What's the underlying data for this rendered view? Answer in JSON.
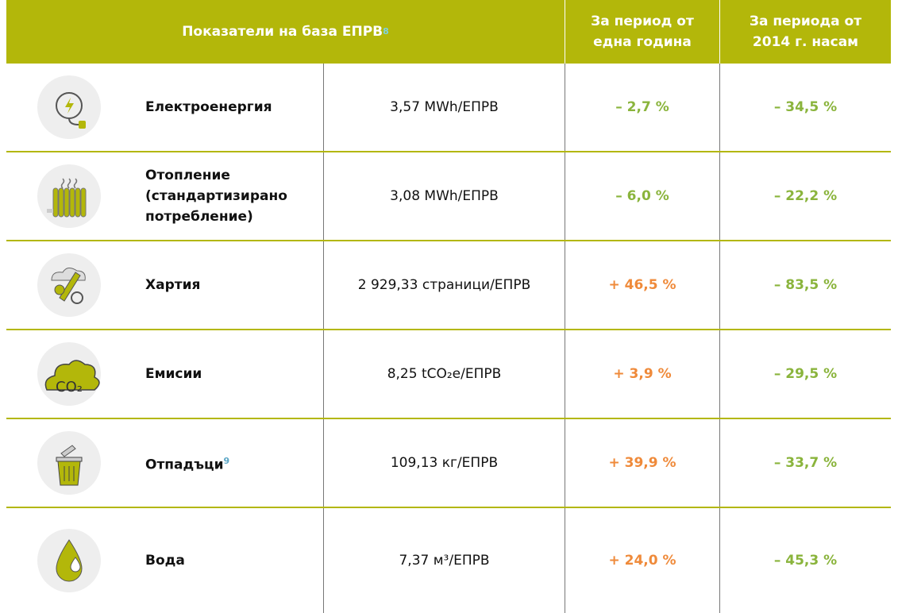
{
  "header": {
    "title": "Показатели на база ЕПРВ",
    "title_note": "8",
    "col_year": "За период от една година",
    "col_since": "За периода от 2014 г. насам"
  },
  "colors": {
    "header": "#b3b70a",
    "green": "#8ab43c",
    "orange": "#ef8a3a",
    "icon": "#b3b70a"
  },
  "rows": [
    {
      "icon": "electricity",
      "name": "Електроенергия",
      "value": "3,57 MWh/ЕПРВ",
      "change_year": "– 2,7 %",
      "year_color": "green",
      "change_since": "– 34,5 %",
      "since_color": "green"
    },
    {
      "icon": "heating",
      "name": "Отопление (стандартизирано потребление)",
      "value": "3,08 MWh/ЕПРВ",
      "change_year": "– 6,0 %",
      "year_color": "green",
      "change_since": "– 22,2 %",
      "since_color": "green"
    },
    {
      "icon": "paper",
      "name": "Хартия",
      "value": "2 929,33 страници/ЕПРВ",
      "change_year": "+ 46,5 %",
      "year_color": "orange",
      "change_since": "– 83,5 %",
      "since_color": "green"
    },
    {
      "icon": "emissions",
      "name": "Емисии",
      "value": "8,25 tCO₂e/ЕПРВ",
      "change_year": "+ 3,9 %",
      "year_color": "orange",
      "change_since": "– 29,5 %",
      "since_color": "green"
    },
    {
      "icon": "waste",
      "name": "Отпадъци",
      "note": "9",
      "value": "109,13 кг/ЕПРВ",
      "change_year": "+ 39,9 %",
      "year_color": "orange",
      "change_since": "– 33,7 %",
      "since_color": "green"
    },
    {
      "icon": "water",
      "name": "Вода",
      "value": "7,37 м³/ЕПРВ",
      "change_year": "+ 24,0 %",
      "year_color": "orange",
      "change_since": "– 45,3 %",
      "since_color": "green"
    }
  ]
}
